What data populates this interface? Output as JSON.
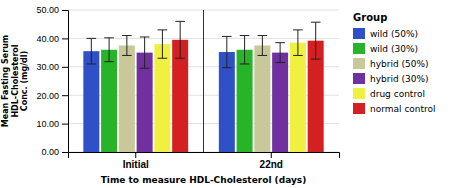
{
  "chart_data": {
    "type": "bar",
    "categories": [
      "Initial",
      "22nd"
    ],
    "series": [
      {
        "name": "wild (50%)",
        "color": "#3050c8",
        "values": [
          35.5,
          35.2
        ],
        "errors": [
          4.5,
          5.5
        ]
      },
      {
        "name": "wild (30%)",
        "color": "#28b428",
        "values": [
          36.0,
          36.0
        ],
        "errors": [
          4.2,
          5.0
        ]
      },
      {
        "name": "hybrid (50%)",
        "color": "#c8c898",
        "values": [
          37.5,
          37.5
        ],
        "errors": [
          3.5,
          3.5
        ]
      },
      {
        "name": "hybrid (30%)",
        "color": "#7030a0",
        "values": [
          35.0,
          35.0
        ],
        "errors": [
          5.5,
          3.5
        ]
      },
      {
        "name": "drug control",
        "color": "#f0f040",
        "values": [
          38.0,
          38.5
        ],
        "errors": [
          5.0,
          4.5
        ]
      },
      {
        "name": "normal control",
        "color": "#d42020",
        "values": [
          39.5,
          39.2
        ],
        "errors": [
          6.5,
          6.5
        ]
      }
    ],
    "xlabel": "Time to measure HDL-Cholesterol (days)",
    "ylabel": "Mean Fasting Serum\nHDL-Cholesterol\nConc. (mg/dl)",
    "legend_title": "Group",
    "ylim": [
      0,
      50
    ],
    "yticks": [
      {
        "value": 0.0,
        "label": "0.00"
      },
      {
        "value": 10.0,
        "label": "10.00"
      },
      {
        "value": 20.0,
        "label": "20.00"
      },
      {
        "value": 30.0,
        "label": "30.00"
      },
      {
        "value": 40.0,
        "label": "40.00"
      },
      {
        "value": 50.0,
        "label": "50.00"
      }
    ],
    "grid": true,
    "legend": "right"
  }
}
